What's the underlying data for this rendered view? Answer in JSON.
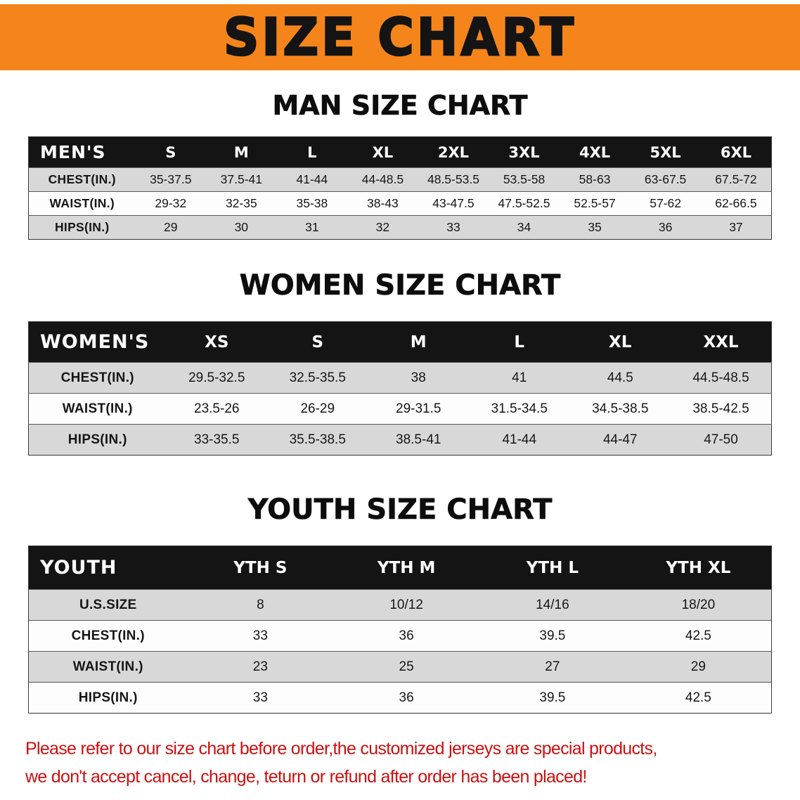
{
  "banner": {
    "title": "SIZE CHART"
  },
  "colors": {
    "banner_bg": "#f5851b",
    "header_bg": "#141414",
    "stripe": "#d8d8d8",
    "footer_text": "#cc1010"
  },
  "sections": [
    {
      "id": "men",
      "heading": "MAN SIZE CHART",
      "label_header": "MEN'S",
      "columns": [
        "S",
        "M",
        "L",
        "XL",
        "2XL",
        "3XL",
        "4XL",
        "5XL",
        "6XL"
      ],
      "rows": [
        {
          "label": "CHEST(IN.)",
          "values": [
            "35-37.5",
            "37.5-41",
            "41-44",
            "44-48.5",
            "48.5-53.5",
            "53.5-58",
            "58-63",
            "63-67.5",
            "67.5-72"
          ]
        },
        {
          "label": "WAIST(IN.)",
          "values": [
            "29-32",
            "32-35",
            "35-38",
            "38-43",
            "43-47.5",
            "47.5-52.5",
            "52.5-57",
            "57-62",
            "62-66.5"
          ]
        },
        {
          "label": "HIPS(IN.)",
          "values": [
            "29",
            "30",
            "31",
            "32",
            "33",
            "34",
            "35",
            "36",
            "37"
          ]
        }
      ]
    },
    {
      "id": "women",
      "heading": "WOMEN SIZE CHART",
      "label_header": "WOMEN'S",
      "columns": [
        "XS",
        "S",
        "M",
        "L",
        "XL",
        "XXL"
      ],
      "rows": [
        {
          "label": "CHEST(IN.)",
          "values": [
            "29.5-32.5",
            "32.5-35.5",
            "38",
            "41",
            "44.5",
            "44.5-48.5"
          ]
        },
        {
          "label": "WAIST(IN.)",
          "values": [
            "23.5-26",
            "26-29",
            "29-31.5",
            "31.5-34.5",
            "34.5-38.5",
            "38.5-42.5"
          ]
        },
        {
          "label": "HIPS(IN.)",
          "values": [
            "33-35.5",
            "35.5-38.5",
            "38.5-41",
            "41-44",
            "44-47",
            "47-50"
          ]
        }
      ]
    },
    {
      "id": "youth",
      "heading": "YOUTH SIZE CHART",
      "label_header": "YOUTH",
      "columns": [
        "YTH S",
        "YTH M",
        "YTH L",
        "YTH XL"
      ],
      "rows": [
        {
          "label": "U.S.SIZE",
          "values": [
            "8",
            "10/12",
            "14/16",
            "18/20"
          ]
        },
        {
          "label": "CHEST(IN.)",
          "values": [
            "33",
            "36",
            "39.5",
            "42.5"
          ]
        },
        {
          "label": "WAIST(IN.)",
          "values": [
            "23",
            "25",
            "27",
            "29"
          ]
        },
        {
          "label": "HIPS(IN.)",
          "values": [
            "33",
            "36",
            "39.5",
            "42.5"
          ]
        }
      ]
    }
  ],
  "footer": {
    "line1": "Please refer to our size chart before order,the customized jerseys are special products,",
    "line2": "we don't accept cancel, change, teturn or refund after order has been placed!"
  }
}
